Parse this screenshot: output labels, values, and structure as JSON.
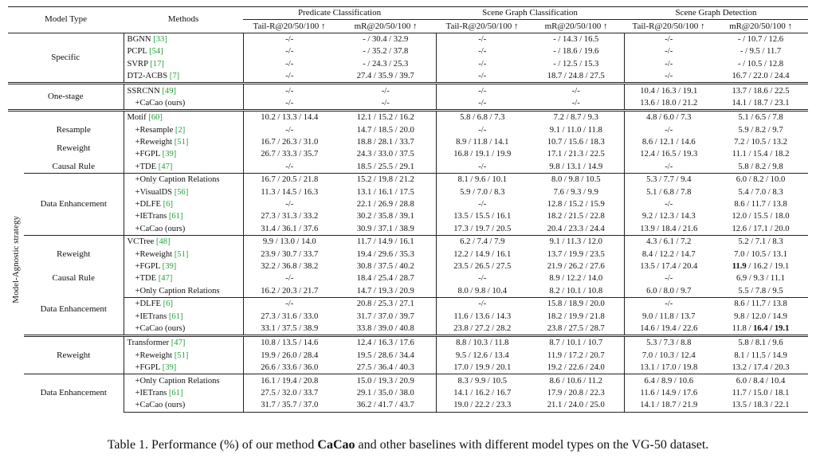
{
  "header": {
    "model_type": "Model Type",
    "methods": "Methods",
    "groups": [
      "Predicate Classification",
      "Scene Graph Classification",
      "Scene Graph Detection"
    ],
    "tail": "Tail-R@20/50/100 ↑",
    "mr": "mR@20/50/100 ↑"
  },
  "vertical_label": "Model-Agnostic strategy",
  "rows": [
    {
      "method": "BGNN",
      "ref": "[33]",
      "vals": [
        "-/-",
        "- / 30.4 / 32.9",
        "-/-",
        "- / 14.3 / 16.5",
        "-/-",
        "- / 10.7 / 12.6"
      ]
    },
    {
      "method": "PCPL",
      "ref": "[54]",
      "vals": [
        "-/-",
        "- / 35.2 / 37.8",
        "-/-",
        "- / 18.6 / 19.6",
        "-/-",
        "- / 9.5 / 11.7"
      ]
    },
    {
      "method": "SVRP",
      "ref": "[17]",
      "vals": [
        "-/-",
        "- / 24.3 / 25.3",
        "-/-",
        "- / 12.5 / 15.3",
        "-/-",
        "- / 10.5 / 12.8"
      ]
    },
    {
      "method": "DT2-ACBS",
      "ref": "[7]",
      "vals": [
        "-/-",
        "27.4 / 35.9 / 39.7",
        "-/-",
        "18.7 / 24.8 / 27.5",
        "-/-",
        "16.7 / 22.0 / 24.4"
      ]
    },
    {
      "method": "SSRCNN",
      "ref": "[49]",
      "vals": [
        "-/-",
        "-/-",
        "-/-",
        "-/-",
        "10.4 / 16.3 / 19.1",
        "13.7 / 18.6 / 22.5"
      ]
    },
    {
      "method": "+CaCao (ours)",
      "ref": "",
      "vals": [
        "-/-",
        "-/-",
        "-/-",
        "-/-",
        "13.6 / 18.0 / 21.2",
        "14.1 / 18.7 / 23.1"
      ]
    },
    {
      "method": "Motif",
      "ref": "[60]",
      "vals": [
        "10.2 / 13.3 / 14.4",
        "12.1 / 15.2 / 16.2",
        "5.8 / 6.8 / 7.3",
        "7.2 / 8.7 / 9.3",
        "4.8 / 6.0 / 7.3",
        "5.1 / 6.5 / 7.8"
      ]
    },
    {
      "method": "+Resample",
      "ref": "[2]",
      "vals": [
        "-/-",
        "14.7 / 18.5 / 20.0",
        "-/-",
        "9.1 / 11.0 / 11.8",
        "-/-",
        "5.9 / 8.2 / 9.7"
      ]
    },
    {
      "method": "+Reweight",
      "ref": "[51]",
      "vals": [
        "16.7 / 26.3 / 31.0",
        "18.8 / 28.1 / 33.7",
        "8.9 / 11.8 / 14.1",
        "10.7 / 15.6 / 18.3",
        "8.6 / 12.1 / 14.6",
        "7.2 / 10.5 / 13.2"
      ]
    },
    {
      "method": "+FGPL",
      "ref": "[39]",
      "vals": [
        "26.7 / 33.3 / 35.7",
        "24.3 / 33.0 / 37.5",
        "16.8 / 19.1 / 19.9",
        "17.1 / 21.3 / 22.5",
        "12.4 / 16.5 / 19.3",
        "11.1 / 15.4 / 18.2"
      ]
    },
    {
      "method": "+TDE",
      "ref": "[47]",
      "vals": [
        "-/-",
        "18.5 / 25.5 / 29.1",
        "-/-",
        "9.8 / 13.1 / 14.9",
        "-/-",
        "5.8 / 8.2 / 9.8"
      ]
    },
    {
      "method": "+Only Caption Relations",
      "ref": "",
      "vals": [
        "16.7 / 20.5 / 21.8",
        "15.2 / 19.8 / 21.2",
        "8.1 / 9.6 / 10.1",
        "8.0 / 9.8 / 10.5",
        "5.3 / 7.7 / 9.4",
        "6.0 / 8.2 / 10.0"
      ]
    },
    {
      "method": "+VisualDS",
      "ref": "[56]",
      "vals": [
        "11.3 / 14.5 / 16.3",
        "13.1 / 16.1 / 17.5",
        "5.9 / 7.0 / 8.3",
        "7.6 / 9.3 / 9.9",
        "5.1 / 6.8 / 7.8",
        "5.4 / 7.0 / 8.3"
      ]
    },
    {
      "method": "+DLFE",
      "ref": "[6]",
      "vals": [
        "-/-",
        "22.1 / 26.9 / 28.8",
        "-/-",
        "12.8 / 15.2 / 15.9",
        "-/-",
        "8.6 / 11.7 / 13.8"
      ]
    },
    {
      "method": "+IETrans",
      "ref": "[61]",
      "vals": [
        "27.3 / 31.3 / 33.2",
        "30.2 / 35.8 / 39.1",
        "13.5 / 15.5 / 16.1",
        "18.2 / 21.5 / 22.8",
        "9.2 / 12.3 / 14.3",
        "12.0 / 15.5 / 18.0"
      ]
    },
    {
      "method": "+CaCao (ours)",
      "ref": "",
      "vals": [
        "31.4 / 36.1 / 37.6",
        "30.9 / 37.1 / 38.9",
        "17.3 / 19.7 / 20.5",
        "20.4 / 23.3 / 24.4",
        "13.9 / 18.4 / 21.6",
        "12.6 / 17.1 / 20.0"
      ]
    },
    {
      "method": "VCTree",
      "ref": "[48]",
      "vals": [
        "9.9 / 13.0 / 14.0",
        "11.7 / 14.9 / 16.1",
        "6.2 / 7.4 / 7.9",
        "9.1 / 11.3 / 12.0",
        "4.3 / 6.1 / 7.2",
        "5.2 / 7.1 / 8.3"
      ]
    },
    {
      "method": "+Reweight",
      "ref": "[51]",
      "vals": [
        "23.9 / 30.7 / 33.7",
        "19.4 / 29.6 / 35.3",
        "12.2 / 14.9 / 16.1",
        "13.7 / 19.9 / 23.5",
        "8.4 / 12.2 / 14.7",
        "7.0 / 10.5 / 13.1"
      ]
    },
    {
      "method": "+FGPL",
      "ref": "[39]",
      "vals": [
        "32.2 / 36.8 / 38.2",
        "30.8 / 37.5 / 40.2",
        "23.5 / 26.5 / 27.5",
        "21.9 / 26.2 / 27.6",
        "13.5 / 17.4 / 20.4",
        "11.9 / 16.2 / 19.1"
      ]
    },
    {
      "method": "+TDE",
      "ref": "[47]",
      "vals": [
        "-/-",
        "18.4 / 25.4 / 28.7",
        "-/-",
        "8.9 / 12.2 / 14.0",
        "-/-",
        "6.9 / 9.3 / 11.1"
      ]
    },
    {
      "method": "+Only Caption Relations",
      "ref": "",
      "vals": [
        "16.2 / 20.3 / 21.7",
        "14.7 / 19.3 / 20.9",
        "8.0 / 9.8 / 10.4",
        "8.2 / 10.1 / 10.8",
        "6.0 / 8.0 / 9.7",
        "5.5 / 7.8 / 9.5"
      ]
    },
    {
      "method": "+DLFE",
      "ref": "[6]",
      "vals": [
        "-/-",
        "20.8 / 25.3 / 27.1",
        "-/-",
        "15.8 / 18.9 / 20.0",
        "-/-",
        "8.6 / 11.7 / 13.8"
      ]
    },
    {
      "method": "+IETrans",
      "ref": "[61]",
      "vals": [
        "27.3 / 31.6 / 33.0",
        "31.7 / 37.0 / 39.7",
        "11.6 / 13.6 / 14.3",
        "18.2 / 19.9 / 21.8",
        "9.0 / 11.8 / 13.7",
        "9.8 / 12.0 / 14.9"
      ]
    },
    {
      "method": "+CaCao (ours)",
      "ref": "",
      "vals": [
        "33.1 / 37.5 / 38.9",
        "33.8 / 39.0 / 40.8",
        "23.8 / 27.2 / 28.2",
        "23.8 / 27.5 / 28.7",
        "14.6 / 19.4 / 22.6",
        "11.8 / 16.4 / 19.1"
      ]
    },
    {
      "method": "Transformer",
      "ref": "[47]",
      "vals": [
        "10.8 / 13.5 / 14.6",
        "12.4 / 16.3 / 17.6",
        "8.8 / 10.3 / 11.8",
        "8.7 / 10.1 / 10.7",
        "5.3 / 7.3 / 8.8",
        "5.8 / 8.1 / 9.6"
      ]
    },
    {
      "method": "+Reweight",
      "ref": "[51]",
      "vals": [
        "19.9 / 26.0 / 28.4",
        "19.5 / 28.6 / 34.4",
        "9.5 / 12.6 / 13.4",
        "11.9 / 17.2 / 20.7",
        "7.0 / 10.3 / 12.4",
        "8.1 / 11.5 / 14.9"
      ]
    },
    {
      "method": "+FGPL",
      "ref": "[39]",
      "vals": [
        "26.6 / 33.6 / 36.0",
        "27.5 / 36.4 / 40.3",
        "17.0 / 19.9 / 20.1",
        "19.2 / 22.6 / 24.0",
        "13.1 / 17.0 / 19.8",
        "13.2 / 17.4 / 20.3"
      ]
    },
    {
      "method": "+Only Caption Relations",
      "ref": "",
      "vals": [
        "16.1 / 19.4 / 20.8",
        "15.0 / 19.3 / 20.9",
        "8.3 / 9.9 / 10.5",
        "8.6 / 10.6 / 11.2",
        "6.4 / 8.9 / 10.6",
        "6.0 / 8.4 / 10.4"
      ]
    },
    {
      "method": "+IETrans",
      "ref": "[61]",
      "vals": [
        "27.5 / 32.0 / 33.7",
        "29.1 / 35.0 / 38.0",
        "14.1 / 16.2 / 16.7",
        "17.9 / 20.8 / 22.3",
        "11.6 / 14.9 / 17.6",
        "11.7 / 15.0 / 18.1"
      ]
    },
    {
      "method": "+CaCao (ours)",
      "ref": "",
      "vals": [
        "31.7 / 35.7 / 37.0",
        "36.2 / 41.7 / 43.7",
        "19.0 / 22.2 / 23.3",
        "21.1 / 24.0 / 25.0",
        "14.1 / 18.7 / 21.9",
        "13.5 / 18.3 / 22.1"
      ]
    }
  ],
  "model_types": {
    "specific": "Specific",
    "one_stage": "One-stage",
    "resample": "Resample",
    "reweight": "Reweight",
    "causal_rule": "Causal Rule",
    "data_enhancement": "Data Enhancement"
  },
  "caption": {
    "prefix": "Table 1. Performance (%) of our method ",
    "bold": "CaCao",
    "suffix": " and other baselines with different model types on the VG-50 dataset."
  },
  "ref_color": "#23a23a"
}
